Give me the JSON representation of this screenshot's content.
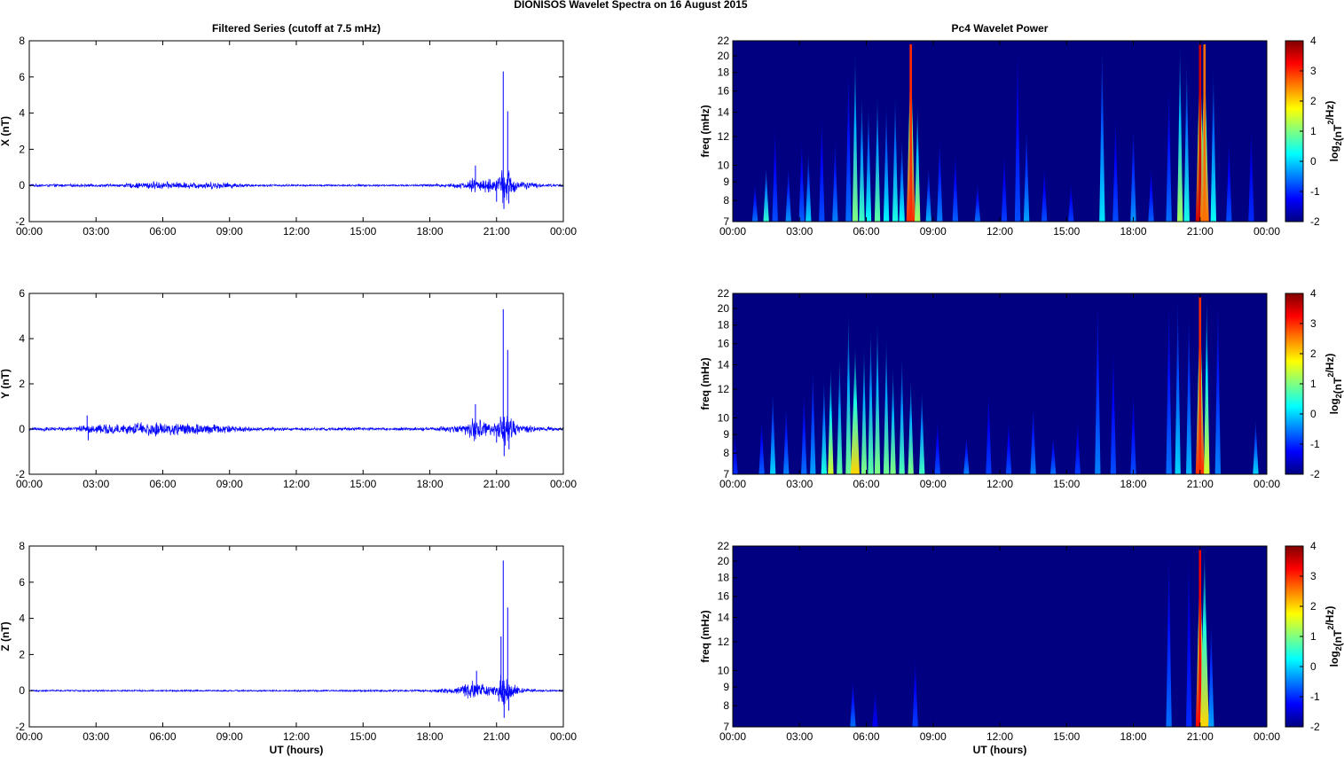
{
  "figure": {
    "title": "DIONISOS Wavelet Spectra on 16 August    2015",
    "left_title": "Filtered Series (cutoff at 7.5 mHz)",
    "right_title": "Pc4 Wavelet Power",
    "xlabel": "UT (hours)",
    "freq_ylabel": "freq (mHz)",
    "colorbar_label": "log2(nT2/Hz)"
  },
  "chart_data": [
    {
      "type": "line",
      "id": "x-series",
      "ylabel": "X (nT)",
      "xlim": [
        0,
        24
      ],
      "ylim": [
        -2,
        8
      ],
      "x_ticks": [
        "00:00",
        "03:00",
        "06:00",
        "09:00",
        "12:00",
        "15:00",
        "18:00",
        "21:00",
        "00:00"
      ],
      "y_ticks": [
        -2,
        0,
        2,
        4,
        6,
        8
      ],
      "color": "#0000ff",
      "x": [
        0,
        2,
        4,
        5.5,
        7,
        8.5,
        10,
        12,
        14,
        16,
        18,
        19.5,
        20.0,
        20.5,
        21.0,
        21.25,
        21.4,
        21.55,
        21.7,
        22,
        23,
        24
      ],
      "envelope": [
        0.06,
        0.07,
        0.07,
        0.2,
        0.16,
        0.18,
        0.06,
        0.05,
        0.05,
        0.05,
        0.06,
        0.14,
        0.4,
        0.35,
        0.3,
        0.8,
        1.0,
        0.8,
        0.5,
        0.25,
        0.08,
        0.06
      ],
      "spikes": [
        {
          "x": 20.05,
          "y": 1.1
        },
        {
          "x": 21.0,
          "y": -0.9
        },
        {
          "x": 21.3,
          "y": 6.3
        },
        {
          "x": 21.33,
          "y": -1.3
        },
        {
          "x": 21.5,
          "y": 4.1
        },
        {
          "x": 21.55,
          "y": -1.0
        }
      ]
    },
    {
      "type": "heatmap",
      "id": "x-wavelet",
      "xlim": [
        0,
        24
      ],
      "ylim": [
        7,
        22
      ],
      "x_ticks": [
        "00:00",
        "03:00",
        "06:00",
        "09:00",
        "12:00",
        "15:00",
        "18:00",
        "21:00",
        "00:00"
      ],
      "y_ticks": [
        7,
        8,
        9,
        10,
        12,
        14,
        16,
        18,
        20,
        22
      ],
      "y_scale": "log",
      "colorbar": {
        "min": -2,
        "max": 4,
        "ticks": [
          -2,
          -1,
          0,
          1,
          2,
          3,
          4
        ],
        "colormap": "jet"
      },
      "background_level": -2,
      "streaks": [
        {
          "t": 1.0,
          "f_top": 9,
          "level": -0.6
        },
        {
          "t": 1.5,
          "f_top": 10,
          "level": 0.5
        },
        {
          "t": 1.9,
          "f_top": 13,
          "level": -0.8
        },
        {
          "t": 2.5,
          "f_top": 10,
          "level": -0.4
        },
        {
          "t": 3.1,
          "f_top": 12,
          "level": -0.7
        },
        {
          "t": 3.4,
          "f_top": 11,
          "level": 0.0
        },
        {
          "t": 4.0,
          "f_top": 14,
          "level": -0.8
        },
        {
          "t": 4.6,
          "f_top": 12,
          "level": -0.5
        },
        {
          "t": 5.2,
          "f_top": 19,
          "level": -0.6
        },
        {
          "t": 5.5,
          "f_top": 21,
          "level": 1.0
        },
        {
          "t": 5.8,
          "f_top": 16,
          "level": 0.6
        },
        {
          "t": 6.1,
          "f_top": 15,
          "level": 0.3
        },
        {
          "t": 6.5,
          "f_top": 16,
          "level": 0.8
        },
        {
          "t": 6.9,
          "f_top": 15,
          "level": 0.2
        },
        {
          "t": 7.3,
          "f_top": 16,
          "level": 0.4
        },
        {
          "t": 7.6,
          "f_top": 12,
          "level": 0.3
        },
        {
          "t": 8.0,
          "f_top": 22,
          "level": 3.0
        },
        {
          "t": 8.3,
          "f_top": 15,
          "level": 1.2
        },
        {
          "t": 8.8,
          "f_top": 10,
          "level": -0.2
        },
        {
          "t": 9.3,
          "f_top": 12,
          "level": -0.5
        },
        {
          "t": 10.0,
          "f_top": 11,
          "level": -0.7
        },
        {
          "t": 11.0,
          "f_top": 9,
          "level": -0.6
        },
        {
          "t": 12.2,
          "f_top": 11,
          "level": -0.9
        },
        {
          "t": 12.8,
          "f_top": 22,
          "level": -0.8
        },
        {
          "t": 13.2,
          "f_top": 13,
          "level": -0.3
        },
        {
          "t": 14.0,
          "f_top": 10,
          "level": -0.8
        },
        {
          "t": 15.2,
          "f_top": 9,
          "level": -0.9
        },
        {
          "t": 16.6,
          "f_top": 22,
          "level": 0.1
        },
        {
          "t": 17.2,
          "f_top": 14,
          "level": -0.8
        },
        {
          "t": 18.0,
          "f_top": 13,
          "level": -0.4
        },
        {
          "t": 18.8,
          "f_top": 10,
          "level": -0.7
        },
        {
          "t": 19.6,
          "f_top": 17,
          "level": -0.6
        },
        {
          "t": 20.1,
          "f_top": 22,
          "level": 1.2
        },
        {
          "t": 20.4,
          "f_top": 20,
          "level": 0.4
        },
        {
          "t": 21.0,
          "f_top": 22,
          "level": 3.5
        },
        {
          "t": 21.2,
          "f_top": 22,
          "level": 2.6
        },
        {
          "t": 21.6,
          "f_top": 19,
          "level": 0.3
        },
        {
          "t": 22.3,
          "f_top": 12,
          "level": -0.8
        },
        {
          "t": 23.3,
          "f_top": 13,
          "level": -1.0
        }
      ]
    },
    {
      "type": "line",
      "id": "y-series",
      "ylabel": "Y (nT)",
      "xlim": [
        0,
        24
      ],
      "ylim": [
        -2,
        6
      ],
      "x_ticks": [
        "00:00",
        "03:00",
        "06:00",
        "09:00",
        "12:00",
        "15:00",
        "18:00",
        "21:00",
        "00:00"
      ],
      "y_ticks": [
        -2,
        0,
        2,
        4,
        6
      ],
      "color": "#0000ff",
      "x": [
        0,
        2,
        2.6,
        4,
        5.5,
        7,
        8.5,
        10,
        12,
        14,
        16,
        18,
        19.5,
        20.0,
        20.5,
        21.0,
        21.25,
        21.4,
        21.55,
        21.7,
        22,
        23,
        24
      ],
      "envelope": [
        0.07,
        0.08,
        0.2,
        0.18,
        0.28,
        0.25,
        0.18,
        0.08,
        0.06,
        0.06,
        0.06,
        0.07,
        0.18,
        0.45,
        0.3,
        0.25,
        0.7,
        0.9,
        0.7,
        0.45,
        0.2,
        0.08,
        0.07
      ],
      "spikes": [
        {
          "x": 2.6,
          "y": 0.6
        },
        {
          "x": 2.65,
          "y": -0.5
        },
        {
          "x": 20.05,
          "y": 1.1
        },
        {
          "x": 21.0,
          "y": -0.6
        },
        {
          "x": 21.3,
          "y": 5.3
        },
        {
          "x": 21.34,
          "y": -1.2
        },
        {
          "x": 21.5,
          "y": 3.5
        },
        {
          "x": 21.56,
          "y": -0.9
        },
        {
          "x": 24,
          "y": 0.7
        }
      ]
    },
    {
      "type": "heatmap",
      "id": "y-wavelet",
      "xlim": [
        0,
        24
      ],
      "ylim": [
        7,
        22
      ],
      "x_ticks": [
        "00:00",
        "03:00",
        "06:00",
        "09:00",
        "12:00",
        "15:00",
        "18:00",
        "21:00",
        "00:00"
      ],
      "y_ticks": [
        7,
        8,
        9,
        10,
        12,
        14,
        16,
        18,
        20,
        22
      ],
      "y_scale": "log",
      "colorbar": {
        "min": -2,
        "max": 4,
        "ticks": [
          -2,
          -1,
          0,
          1,
          2,
          3,
          4
        ],
        "colormap": "jet"
      },
      "background_level": -2,
      "streaks": [
        {
          "t": 0.1,
          "f_top": 9,
          "level": -1.0
        },
        {
          "t": 1.3,
          "f_top": 10,
          "level": -0.7
        },
        {
          "t": 1.8,
          "f_top": 12,
          "level": 0.0
        },
        {
          "t": 2.4,
          "f_top": 11,
          "level": -0.5
        },
        {
          "t": 3.2,
          "f_top": 12,
          "level": -0.6
        },
        {
          "t": 3.6,
          "f_top": 14,
          "level": -0.3
        },
        {
          "t": 4.1,
          "f_top": 13,
          "level": 0.4
        },
        {
          "t": 4.4,
          "f_top": 14,
          "level": 1.5
        },
        {
          "t": 4.8,
          "f_top": 15,
          "level": 0.8
        },
        {
          "t": 5.2,
          "f_top": 20,
          "level": 0.9
        },
        {
          "t": 5.5,
          "f_top": 16,
          "level": 2.0
        },
        {
          "t": 5.9,
          "f_top": 16,
          "level": 1.0
        },
        {
          "t": 6.2,
          "f_top": 18,
          "level": 0.8
        },
        {
          "t": 6.5,
          "f_top": 19,
          "level": 1.0
        },
        {
          "t": 6.9,
          "f_top": 17,
          "level": 0.9
        },
        {
          "t": 7.2,
          "f_top": 14,
          "level": 1.0
        },
        {
          "t": 7.6,
          "f_top": 15,
          "level": 0.7
        },
        {
          "t": 8.0,
          "f_top": 13,
          "level": 1.0
        },
        {
          "t": 8.5,
          "f_top": 12,
          "level": 0.6
        },
        {
          "t": 9.2,
          "f_top": 10,
          "level": -0.8
        },
        {
          "t": 10.5,
          "f_top": 9,
          "level": -0.5
        },
        {
          "t": 11.5,
          "f_top": 12,
          "level": -0.9
        },
        {
          "t": 12.4,
          "f_top": 10,
          "level": -0.8
        },
        {
          "t": 13.5,
          "f_top": 11,
          "level": -0.5
        },
        {
          "t": 14.4,
          "f_top": 9,
          "level": -0.6
        },
        {
          "t": 15.5,
          "f_top": 10,
          "level": -0.9
        },
        {
          "t": 16.4,
          "f_top": 22,
          "level": -0.5
        },
        {
          "t": 17.1,
          "f_top": 16,
          "level": -0.8
        },
        {
          "t": 18.0,
          "f_top": 12,
          "level": -0.8
        },
        {
          "t": 19.6,
          "f_top": 22,
          "level": -0.6
        },
        {
          "t": 20.0,
          "f_top": 22,
          "level": 0.0
        },
        {
          "t": 20.5,
          "f_top": 20,
          "level": -0.2
        },
        {
          "t": 21.0,
          "f_top": 22,
          "level": 3.0
        },
        {
          "t": 21.3,
          "f_top": 22,
          "level": 1.5
        },
        {
          "t": 21.8,
          "f_top": 22,
          "level": -0.5
        },
        {
          "t": 23.5,
          "f_top": 10,
          "level": 0.0
        }
      ]
    },
    {
      "type": "line",
      "id": "z-series",
      "ylabel": "Z (nT)",
      "xlim": [
        0,
        24
      ],
      "ylim": [
        -2,
        8
      ],
      "x_ticks": [
        "00:00",
        "03:00",
        "06:00",
        "09:00",
        "12:00",
        "15:00",
        "18:00",
        "21:00",
        "00:00"
      ],
      "y_ticks": [
        -2,
        0,
        2,
        4,
        6,
        8
      ],
      "color": "#0000ff",
      "x": [
        0,
        4,
        8,
        12,
        16,
        18,
        19.2,
        19.7,
        20.0,
        20.4,
        20.8,
        21.1,
        21.3,
        21.45,
        21.6,
        21.8,
        22.2,
        23,
        24
      ],
      "envelope": [
        0.04,
        0.04,
        0.04,
        0.04,
        0.05,
        0.06,
        0.15,
        0.35,
        0.5,
        0.35,
        0.2,
        0.6,
        0.9,
        0.8,
        0.5,
        0.3,
        0.1,
        0.05,
        0.04
      ],
      "spikes": [
        {
          "x": 20.1,
          "y": 1.1
        },
        {
          "x": 21.1,
          "y": -0.6
        },
        {
          "x": 21.3,
          "y": 7.2
        },
        {
          "x": 21.34,
          "y": -1.5
        },
        {
          "x": 21.5,
          "y": 4.6
        },
        {
          "x": 21.55,
          "y": -1.1
        },
        {
          "x": 21.2,
          "y": 3.0
        }
      ]
    },
    {
      "type": "heatmap",
      "id": "z-wavelet",
      "xlim": [
        0,
        24
      ],
      "ylim": [
        7,
        22
      ],
      "x_ticks": [
        "00:00",
        "03:00",
        "06:00",
        "09:00",
        "12:00",
        "15:00",
        "18:00",
        "21:00",
        "00:00"
      ],
      "y_ticks": [
        7,
        8,
        9,
        10,
        12,
        14,
        16,
        18,
        20,
        22
      ],
      "y_scale": "log",
      "colorbar": {
        "min": -2,
        "max": 4,
        "ticks": [
          -2,
          -1,
          0,
          1,
          2,
          3,
          4
        ],
        "colormap": "jet"
      },
      "background_level": -2,
      "streaks": [
        {
          "t": 5.4,
          "f_top": 9.5,
          "level": -0.6
        },
        {
          "t": 6.4,
          "f_top": 9,
          "level": -1.3
        },
        {
          "t": 8.2,
          "f_top": 11,
          "level": -0.9
        },
        {
          "t": 19.6,
          "f_top": 22,
          "level": -0.6
        },
        {
          "t": 20.5,
          "f_top": 22,
          "level": -1.0
        },
        {
          "t": 21.0,
          "f_top": 22,
          "level": 3.3
        },
        {
          "t": 21.2,
          "f_top": 22,
          "level": 2.0
        },
        {
          "t": 21.5,
          "f_top": 14,
          "level": -0.3
        }
      ]
    }
  ]
}
